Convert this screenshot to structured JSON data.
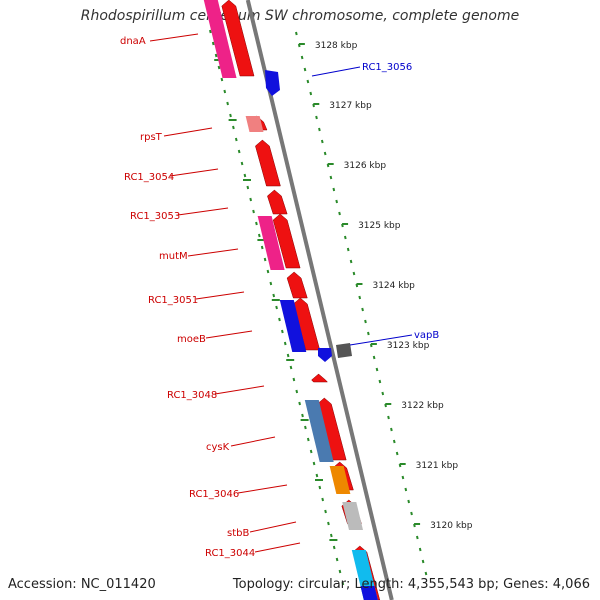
{
  "title": "Rhodospirillum centenum SW chromosome, complete genome",
  "footer": {
    "accession": "Accession: NC_011420",
    "summary": "Topology: circular; Length: 4,355,543 bp; Genes: 4,066"
  },
  "scale_labels": [
    "3128 kbp",
    "3127 kbp",
    "3126 kbp",
    "3125 kbp",
    "3124 kbp",
    "3123 kbp",
    "3122 kbp",
    "3121 kbp",
    "3120 kbp"
  ],
  "gene_labels": [
    {
      "text": "dnaA",
      "color": "#cc0000"
    },
    {
      "text": "rpsT",
      "color": "#cc0000"
    },
    {
      "text": "RC1_3054",
      "color": "#cc0000"
    },
    {
      "text": "RC1_3053",
      "color": "#cc0000"
    },
    {
      "text": "mutM",
      "color": "#cc0000"
    },
    {
      "text": "RC1_3051",
      "color": "#cc0000"
    },
    {
      "text": "moeB",
      "color": "#cc0000"
    },
    {
      "text": "RC1_3048",
      "color": "#cc0000"
    },
    {
      "text": "cysK",
      "color": "#cc0000"
    },
    {
      "text": "RC1_3046",
      "color": "#cc0000"
    },
    {
      "text": "stbB",
      "color": "#cc0000"
    },
    {
      "text": "RC1_3044",
      "color": "#cc0000"
    },
    {
      "text": "RC1_3056",
      "color": "#0000cc"
    },
    {
      "text": "vapB",
      "color": "#0000cc"
    }
  ],
  "colors": {
    "cds": "#ee1111",
    "backbone": "#777777",
    "tick": "#2a8a2a",
    "pink": "#ee2288",
    "blue": "#1111dd",
    "steel": "#4a7ab0",
    "orange": "#ee8800",
    "grey": "#bbbbbb",
    "cyan": "#11bbee",
    "darkgrey": "#555555",
    "salmon": "#f08080"
  }
}
